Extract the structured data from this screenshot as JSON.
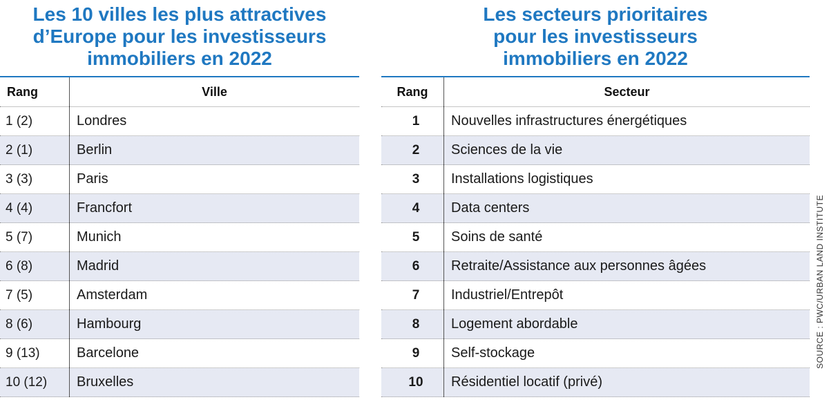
{
  "left": {
    "title_lines": [
      "Les 10 villes les plus attractives",
      "d’Europe pour les investisseurs",
      "immobiliers en 2022"
    ],
    "headers": {
      "rank": "Rang",
      "name": "Ville"
    },
    "rows": [
      {
        "rank": "1 (2)",
        "name": "Londres"
      },
      {
        "rank": "2 (1)",
        "name": "Berlin"
      },
      {
        "rank": "3 (3)",
        "name": "Paris"
      },
      {
        "rank": "4 (4)",
        "name": "Francfort"
      },
      {
        "rank": "5 (7)",
        "name": "Munich"
      },
      {
        "rank": "6 (8)",
        "name": "Madrid"
      },
      {
        "rank": "7 (5)",
        "name": "Amsterdam"
      },
      {
        "rank": "8 (6)",
        "name": "Hambourg"
      },
      {
        "rank": "9 (13)",
        "name": "Barcelone"
      },
      {
        "rank": "10 (12)",
        "name": "Bruxelles"
      }
    ]
  },
  "right": {
    "title_lines": [
      "Les secteurs prioritaires",
      "pour les investisseurs",
      "immobiliers en 2022"
    ],
    "headers": {
      "rank": "Rang",
      "name": "Secteur"
    },
    "rows": [
      {
        "rank": "1",
        "name": "Nouvelles infrastructures énergétiques"
      },
      {
        "rank": "2",
        "name": "Sciences de la vie"
      },
      {
        "rank": "3",
        "name": "Installations logistiques"
      },
      {
        "rank": "4",
        "name": "Data centers"
      },
      {
        "rank": "5",
        "name": "Soins de santé"
      },
      {
        "rank": "6",
        "name": "Retraite/Assistance aux personnes âgées"
      },
      {
        "rank": "7",
        "name": "Industriel/Entrepôt"
      },
      {
        "rank": "8",
        "name": "Logement abordable"
      },
      {
        "rank": "9",
        "name": "Self-stockage"
      },
      {
        "rank": "10",
        "name": "Résidentiel locatif (privé)"
      }
    ]
  },
  "source": "SOURCE : PWC/URBAN LAND INSTITUTE",
  "colors": {
    "title": "#1f78c1",
    "alt_row": "#e6e9f3"
  }
}
